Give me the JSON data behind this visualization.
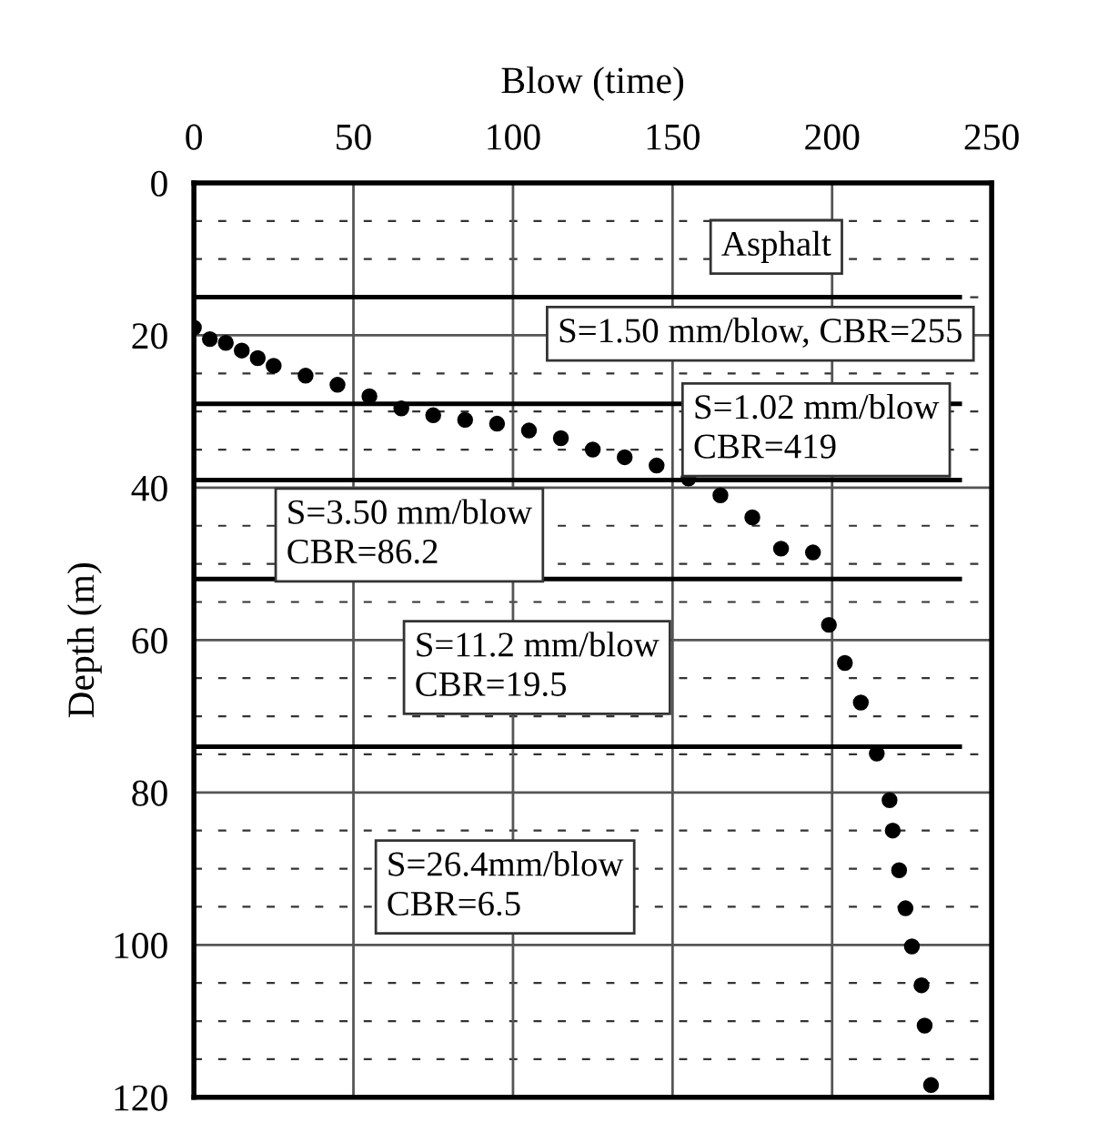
{
  "chart_data": {
    "type": "scatter",
    "xlabel": "Blow (time)",
    "ylabel": "Depth (m)",
    "x": [
      0,
      5,
      10,
      15,
      20,
      25,
      35,
      45,
      55,
      65,
      75,
      85,
      95,
      105,
      115,
      125,
      135,
      145,
      155,
      165,
      175,
      184,
      194,
      199,
      204,
      209,
      214,
      218,
      219,
      221,
      223,
      225,
      228,
      229,
      231
    ],
    "series": [
      {
        "color": "#000000",
        "values": [
          19,
          20.5,
          21,
          22,
          23,
          24,
          25.3,
          26.5,
          28,
          29.6,
          30.5,
          31.1,
          31.6,
          32.5,
          33.5,
          35,
          36,
          37.1,
          38.8,
          41,
          43.9,
          48,
          48.5,
          58,
          63,
          68.2,
          74.9,
          81,
          85,
          90.2,
          95.2,
          100.2,
          105.3,
          110.6,
          118.4
        ]
      }
    ],
    "marker": "circle",
    "xlim": [
      0,
      250
    ],
    "xticks": [
      0,
      50,
      100,
      150,
      200,
      250
    ],
    "ylim": [
      120,
      0
    ],
    "yticks": [
      0,
      20,
      40,
      60,
      80,
      100,
      120
    ],
    "grid": true,
    "legend": false,
    "ref_lines": [
      {
        "axis": "y",
        "value": 15,
        "color": "#000000"
      },
      {
        "axis": "y",
        "value": 29,
        "color": "#000000"
      },
      {
        "axis": "y",
        "value": 39,
        "color": "#000000"
      },
      {
        "axis": "y",
        "value": 52,
        "color": "#000000"
      },
      {
        "axis": "y",
        "value": 74,
        "color": "#000000"
      }
    ],
    "annotations": [
      "Asphalt",
      "S=1.50 mm/blow, CBR=255",
      "S=1.02 mm/blow\nCBR=419",
      "S=3.50 mm/blow\nCBR=86.2",
      "S=11.2 mm/blow\nCBR=19.5",
      "S=26.4mm/blow\nCBR=6.5"
    ]
  }
}
